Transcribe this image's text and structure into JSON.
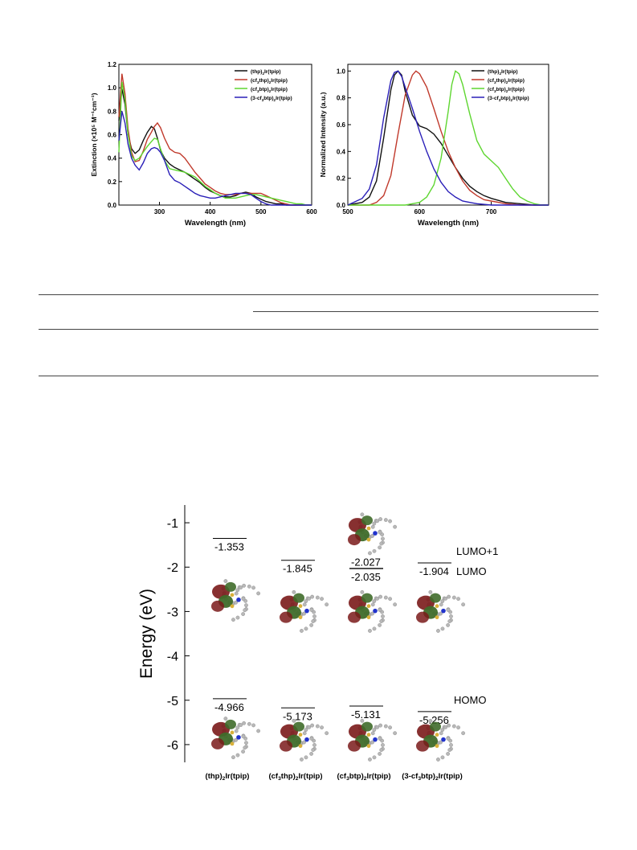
{
  "chart_data": [
    {
      "id": "absorption",
      "type": "line",
      "xlabel": "Wavelength (nm)",
      "ylabel": "Extinction (×10⁵ M⁻¹cm⁻¹)",
      "xlim": [
        220,
        600
      ],
      "ylim": [
        0,
        1.2
      ],
      "xticks": [
        300,
        400,
        500,
        600
      ],
      "yticks": [
        0.0,
        0.2,
        0.4,
        0.6,
        0.8,
        1.0,
        1.2
      ],
      "grid": false,
      "legend_position": "top-right",
      "series": [
        {
          "name": "(thp)₂Ir(tpip)",
          "color": "#111111",
          "x": [
            220,
            226,
            232,
            238,
            245,
            252,
            260,
            268,
            276,
            284,
            290,
            296,
            302,
            310,
            320,
            330,
            340,
            350,
            360,
            370,
            380,
            390,
            400,
            410,
            420,
            430,
            440,
            450,
            460,
            470,
            480,
            490,
            500,
            510,
            520,
            530,
            540,
            550,
            560,
            570,
            580,
            590,
            600
          ],
          "y": [
            0.72,
            0.99,
            0.86,
            0.6,
            0.48,
            0.44,
            0.47,
            0.55,
            0.62,
            0.67,
            0.65,
            0.57,
            0.47,
            0.4,
            0.35,
            0.32,
            0.3,
            0.28,
            0.25,
            0.22,
            0.19,
            0.15,
            0.12,
            0.1,
            0.08,
            0.07,
            0.07,
            0.08,
            0.1,
            0.11,
            0.1,
            0.07,
            0.05,
            0.03,
            0.02,
            0.01,
            0.01,
            0.0,
            0.0,
            0.0,
            0.0,
            0.0,
            0.0
          ]
        },
        {
          "name": "(cf₃thp)₂Ir(tpip)",
          "color": "#c0392b",
          "x": [
            220,
            226,
            232,
            238,
            245,
            252,
            260,
            268,
            276,
            284,
            290,
            296,
            302,
            310,
            320,
            330,
            340,
            350,
            360,
            370,
            380,
            390,
            400,
            410,
            420,
            430,
            440,
            450,
            460,
            470,
            480,
            490,
            500,
            510,
            520,
            530,
            540,
            550,
            560,
            570,
            580,
            590,
            600
          ],
          "y": [
            0.75,
            1.12,
            0.95,
            0.65,
            0.45,
            0.37,
            0.38,
            0.46,
            0.56,
            0.62,
            0.67,
            0.7,
            0.66,
            0.57,
            0.48,
            0.45,
            0.44,
            0.4,
            0.34,
            0.28,
            0.23,
            0.18,
            0.15,
            0.12,
            0.1,
            0.09,
            0.09,
            0.09,
            0.1,
            0.1,
            0.1,
            0.1,
            0.1,
            0.08,
            0.06,
            0.04,
            0.02,
            0.01,
            0.0,
            0.0,
            0.0,
            0.0,
            0.0
          ]
        },
        {
          "name": "(cf₃btp)₂Ir(tpip)",
          "color": "#5ed630",
          "x": [
            220,
            226,
            232,
            238,
            245,
            252,
            260,
            268,
            276,
            284,
            290,
            296,
            302,
            310,
            320,
            330,
            340,
            350,
            360,
            370,
            380,
            390,
            400,
            410,
            420,
            430,
            440,
            450,
            460,
            470,
            480,
            490,
            500,
            510,
            520,
            530,
            540,
            550,
            560,
            570,
            580,
            590,
            600
          ],
          "y": [
            0.45,
            1.05,
            0.9,
            0.6,
            0.42,
            0.38,
            0.4,
            0.45,
            0.5,
            0.54,
            0.57,
            0.56,
            0.48,
            0.38,
            0.31,
            0.3,
            0.29,
            0.28,
            0.26,
            0.24,
            0.2,
            0.16,
            0.13,
            0.1,
            0.08,
            0.06,
            0.06,
            0.06,
            0.07,
            0.08,
            0.09,
            0.09,
            0.08,
            0.07,
            0.06,
            0.05,
            0.04,
            0.03,
            0.02,
            0.01,
            0.01,
            0.0,
            0.0
          ]
        },
        {
          "name": "(3-cf₃btp)₂Ir(tpip)",
          "color": "#2a1fb8",
          "x": [
            220,
            226,
            232,
            238,
            245,
            252,
            260,
            268,
            276,
            284,
            290,
            296,
            302,
            310,
            320,
            330,
            340,
            350,
            360,
            370,
            380,
            390,
            400,
            410,
            420,
            430,
            440,
            450,
            460,
            470,
            480,
            490,
            500,
            510,
            520,
            530,
            540,
            550,
            560,
            570,
            580,
            590,
            600
          ],
          "y": [
            0.55,
            0.8,
            0.7,
            0.52,
            0.4,
            0.34,
            0.3,
            0.36,
            0.44,
            0.48,
            0.49,
            0.48,
            0.45,
            0.38,
            0.26,
            0.21,
            0.19,
            0.16,
            0.13,
            0.1,
            0.08,
            0.07,
            0.06,
            0.06,
            0.07,
            0.08,
            0.09,
            0.1,
            0.1,
            0.1,
            0.09,
            0.06,
            0.03,
            0.01,
            0.0,
            0.0,
            0.0,
            0.0,
            0.0,
            0.0,
            0.0,
            0.0,
            0.0
          ]
        }
      ]
    },
    {
      "id": "emission",
      "type": "line",
      "xlabel": "Wavelength (nm)",
      "ylabel": "Normalized Intensity (a.u.)",
      "xlim": [
        500,
        780
      ],
      "ylim": [
        0,
        1.05
      ],
      "xticks": [
        500,
        600,
        700
      ],
      "yticks": [
        0.0,
        0.2,
        0.4,
        0.6,
        0.8,
        1.0
      ],
      "grid": false,
      "legend_position": "top-right",
      "series": [
        {
          "name": "(thp)₂Ir(tpip)",
          "color": "#111111",
          "x": [
            500,
            520,
            530,
            540,
            550,
            560,
            565,
            570,
            575,
            580,
            590,
            600,
            610,
            620,
            630,
            640,
            650,
            660,
            670,
            680,
            690,
            700,
            720,
            740,
            760,
            780
          ],
          "y": [
            0.0,
            0.02,
            0.06,
            0.18,
            0.5,
            0.86,
            0.97,
            1.0,
            0.97,
            0.85,
            0.67,
            0.59,
            0.57,
            0.53,
            0.46,
            0.37,
            0.28,
            0.2,
            0.14,
            0.1,
            0.07,
            0.05,
            0.02,
            0.01,
            0.0,
            0.0
          ]
        },
        {
          "name": "(cf₃thp)₂Ir(tpip)",
          "color": "#c0392b",
          "x": [
            500,
            530,
            540,
            550,
            560,
            570,
            580,
            590,
            595,
            600,
            610,
            620,
            630,
            640,
            650,
            660,
            670,
            680,
            690,
            700,
            720,
            740,
            760,
            780
          ],
          "y": [
            0.0,
            0.0,
            0.02,
            0.07,
            0.22,
            0.53,
            0.82,
            0.97,
            1.0,
            0.98,
            0.88,
            0.72,
            0.55,
            0.4,
            0.28,
            0.18,
            0.11,
            0.07,
            0.04,
            0.03,
            0.01,
            0.0,
            0.0,
            0.0
          ]
        },
        {
          "name": "(cf₃btp)₂Ir(tpip)",
          "color": "#5ed630",
          "x": [
            500,
            580,
            600,
            610,
            620,
            630,
            640,
            645,
            650,
            655,
            660,
            670,
            680,
            690,
            700,
            710,
            720,
            730,
            740,
            750,
            760,
            770,
            780
          ],
          "y": [
            0.0,
            0.0,
            0.02,
            0.06,
            0.15,
            0.35,
            0.7,
            0.9,
            1.0,
            0.98,
            0.9,
            0.68,
            0.48,
            0.38,
            0.33,
            0.28,
            0.2,
            0.12,
            0.06,
            0.03,
            0.01,
            0.0,
            0.0
          ]
        },
        {
          "name": "(3-cf₃btp)₂Ir(tpip)",
          "color": "#2a1fb8",
          "x": [
            500,
            520,
            530,
            540,
            550,
            560,
            565,
            570,
            575,
            580,
            590,
            600,
            610,
            620,
            630,
            640,
            650,
            660,
            670,
            680,
            700,
            720,
            740,
            760,
            780
          ],
          "y": [
            0.0,
            0.05,
            0.12,
            0.3,
            0.65,
            0.93,
            0.99,
            1.0,
            0.96,
            0.88,
            0.72,
            0.55,
            0.4,
            0.27,
            0.17,
            0.1,
            0.06,
            0.03,
            0.02,
            0.01,
            0.0,
            0.0,
            0.0,
            0.0,
            0.0
          ]
        }
      ]
    },
    {
      "id": "energy",
      "type": "scatter",
      "ylabel": "Energy (eV)",
      "ylim": [
        -6.4,
        -0.6
      ],
      "yticks": [
        -1,
        -2,
        -3,
        -4,
        -5,
        -6
      ],
      "categories": [
        "(thp)₂Ir(tpip)",
        "(cf₃thp)₂Ir(tpip)",
        "(cf₃btp)₂Ir(tpip)",
        "(3-cf₃btp)₂Ir(tpip)"
      ],
      "levels": [
        {
          "compound": 0,
          "value": -1.353,
          "label": "-1.353"
        },
        {
          "compound": 0,
          "value": -4.966,
          "label": "-4.966"
        },
        {
          "compound": 1,
          "value": -1.845,
          "label": "-1.845"
        },
        {
          "compound": 1,
          "value": -5.173,
          "label": "-5.173"
        },
        {
          "compound": 2,
          "value": -2.027,
          "label": "-2.027"
        },
        {
          "compound": 2,
          "value": -2.035,
          "label": "-2.035"
        },
        {
          "compound": 2,
          "value": -5.131,
          "label": "-5.131"
        },
        {
          "compound": 3,
          "value": -1.904,
          "label": "-1.904"
        },
        {
          "compound": 3,
          "value": -5.256,
          "label": "-5.256"
        }
      ],
      "annotations": [
        "LUMO+1",
        "LUMO",
        "HOMO"
      ]
    }
  ],
  "colors": {
    "orbital_red": "#7a1a1a",
    "orbital_green": "#3f6b2a",
    "atom_gray": "#b8b8b8",
    "nitrogen_blue": "#2233cc",
    "sulfur_yellow": "#d9b13a"
  }
}
